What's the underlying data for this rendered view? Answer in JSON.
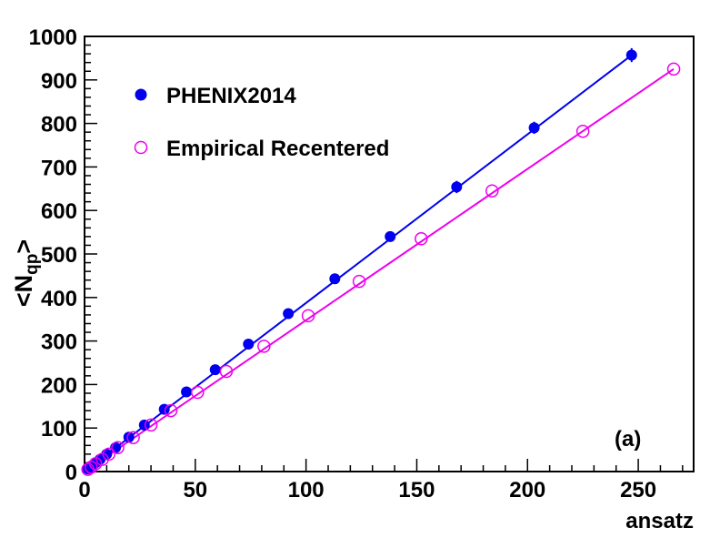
{
  "chart_data": {
    "type": "scatter",
    "title": "",
    "xlabel": "ansatz",
    "ylabel_main": "<N",
    "ylabel_sub": "qp",
    "ylabel_close": ">",
    "xlim": [
      0,
      275
    ],
    "ylim": [
      0,
      1000
    ],
    "x_ticks": [
      0,
      50,
      100,
      150,
      200,
      250
    ],
    "y_ticks": [
      0,
      100,
      200,
      300,
      400,
      500,
      600,
      700,
      800,
      900,
      1000
    ],
    "annotation": "(a)",
    "legend_position": "top-left",
    "series": [
      {
        "name": "PHENIX2014",
        "marker": "filled-circle",
        "color": "#0000ee",
        "x": [
          1.5,
          3,
          5,
          7,
          10,
          14,
          20,
          27,
          36,
          46,
          59,
          74,
          92,
          113,
          138,
          168,
          203,
          247
        ],
        "y": [
          6,
          12,
          20,
          28,
          40,
          55,
          79,
          107,
          143,
          183,
          234,
          293,
          363,
          443,
          540,
          654,
          790,
          957
        ],
        "err": [
          2,
          2,
          2,
          2,
          3,
          3,
          4,
          4,
          5,
          5,
          6,
          7,
          8,
          9,
          10,
          14,
          14,
          16
        ],
        "fit_line": {
          "x": [
            0,
            247
          ],
          "y": [
            0,
            957
          ]
        }
      },
      {
        "name": "Empirical Recentered",
        "marker": "open-circle",
        "color": "#ee00ee",
        "x": [
          1.5,
          3,
          5,
          8,
          11,
          15,
          22,
          30,
          39,
          51,
          64,
          81,
          101,
          124,
          152,
          184,
          225,
          266
        ],
        "y": [
          5,
          10,
          18,
          28,
          40,
          55,
          78,
          107,
          140,
          182,
          230,
          288,
          358,
          437,
          535,
          645,
          782,
          925
        ],
        "fit_line": {
          "x": [
            0,
            266
          ],
          "y": [
            0,
            925
          ]
        }
      }
    ]
  },
  "colors": {
    "axis": "#000000",
    "series1": "#0000ee",
    "series2": "#ee00ee"
  }
}
